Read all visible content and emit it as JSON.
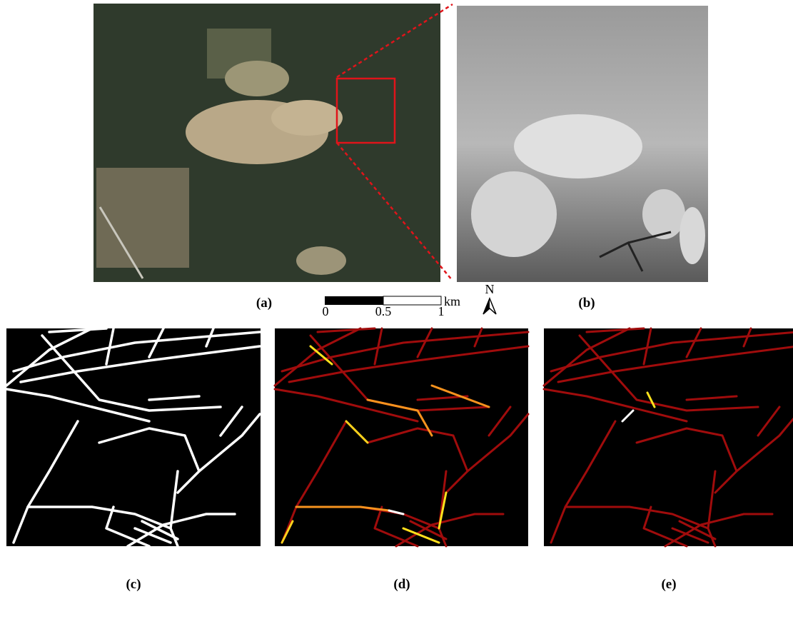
{
  "panels": {
    "a": "(a)",
    "b": "(b)",
    "c": "(c)",
    "d": "(d)",
    "e": "(e)"
  },
  "scale_bar": {
    "ticks": [
      "0",
      "0.5",
      "1"
    ],
    "unit": "km"
  },
  "north_arrow": "N"
}
